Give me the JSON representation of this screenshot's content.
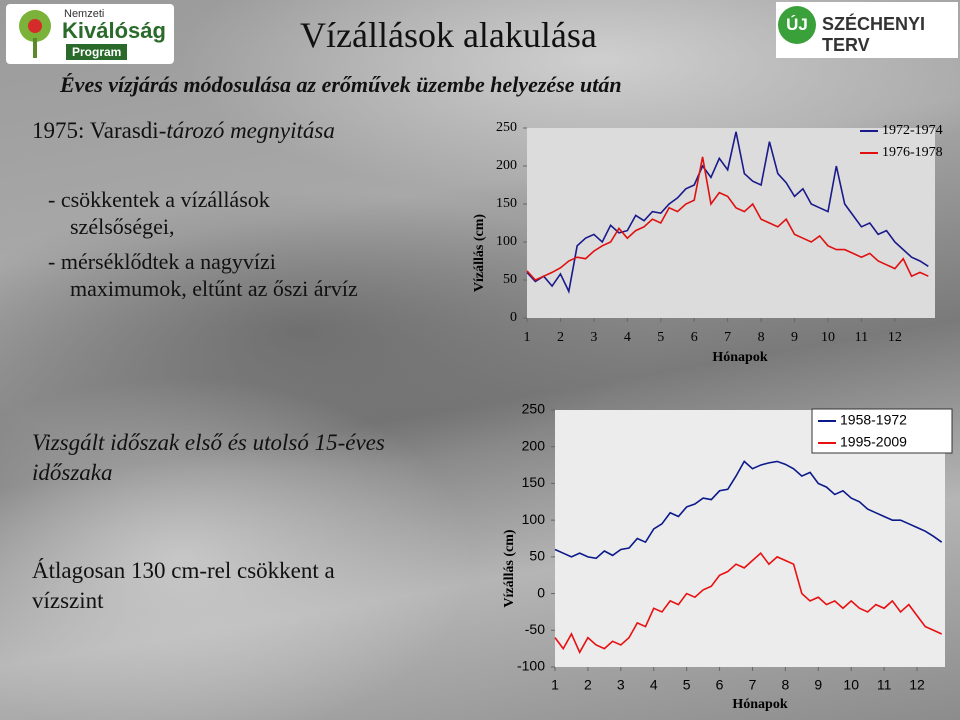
{
  "header": {
    "title": "Vízállások alakulása",
    "subtitle": "Éves vízjárás módosulása az erőművek üzembe helyezése után"
  },
  "logos": {
    "left": {
      "top": "Nemzeti",
      "main": "Kiválóság",
      "bottom": "Program"
    },
    "right": {
      "icon": "ÚJ",
      "text": "SZÉCHENYI TERV"
    }
  },
  "texts": {
    "event": [
      "1975: Varasdi-",
      "tározó megnyitása"
    ],
    "bullets": [
      "- csökkentek a vízállások szélsőségei,",
      "- mérséklődtek a nagyvízi maximumok, eltűnt az őszi árvíz"
    ],
    "period": "Vizsgált időszak első és utolsó 15-éves időszaka",
    "summary": "Átlagosan 130 cm-rel csökkent a vízszint"
  },
  "chart_data": [
    {
      "type": "line",
      "xlabel": "Hónapok",
      "ylabel": "Vízállás (cm)",
      "grid": false,
      "legend": "upper right",
      "xlim": [
        1,
        13.2
      ],
      "xticks": [
        1,
        2,
        3,
        4,
        5,
        6,
        7,
        8,
        9,
        10,
        11,
        12
      ],
      "ylim": [
        0,
        250
      ],
      "yticks": [
        0,
        50,
        100,
        150,
        200,
        250
      ],
      "x": [
        1,
        1.25,
        1.5,
        1.75,
        2,
        2.25,
        2.5,
        2.75,
        3,
        3.25,
        3.5,
        3.75,
        4,
        4.25,
        4.5,
        4.75,
        5,
        5.25,
        5.5,
        5.75,
        6,
        6.25,
        6.5,
        6.75,
        7,
        7.25,
        7.5,
        7.75,
        8,
        8.25,
        8.5,
        8.75,
        9,
        9.25,
        9.5,
        9.75,
        10,
        10.25,
        10.5,
        10.75,
        11,
        11.25,
        11.5,
        11.75,
        12,
        12.25,
        12.5,
        12.75,
        13
      ],
      "series": [
        {
          "name": "1972-1974",
          "color": "#1a1a8c",
          "values": [
            60,
            48,
            55,
            42,
            58,
            35,
            95,
            105,
            110,
            100,
            122,
            112,
            115,
            135,
            128,
            140,
            138,
            150,
            158,
            170,
            175,
            200,
            185,
            210,
            195,
            245,
            190,
            180,
            175,
            232,
            190,
            178,
            160,
            170,
            150,
            145,
            140,
            200,
            150,
            135,
            120,
            125,
            110,
            115,
            100,
            90,
            80,
            75,
            68
          ]
        },
        {
          "name": "1976-1978",
          "color": "#e01010",
          "values": [
            62,
            50,
            55,
            60,
            66,
            75,
            80,
            78,
            88,
            95,
            100,
            118,
            105,
            115,
            120,
            130,
            125,
            145,
            140,
            150,
            155,
            212,
            150,
            165,
            160,
            145,
            140,
            150,
            130,
            125,
            120,
            130,
            110,
            105,
            100,
            108,
            95,
            90,
            90,
            85,
            80,
            85,
            75,
            70,
            65,
            78,
            55,
            60,
            55
          ]
        }
      ]
    },
    {
      "type": "line",
      "xlabel": "Hónapok",
      "ylabel": "Vízállás (cm)",
      "grid": false,
      "legend": "upper right",
      "xlim": [
        1,
        12.85
      ],
      "xticks": [
        1,
        2,
        3,
        4,
        5,
        6,
        7,
        8,
        9,
        10,
        11,
        12
      ],
      "ylim": [
        -100,
        250
      ],
      "yticks": [
        -100,
        -50,
        0,
        50,
        100,
        150,
        200,
        250
      ],
      "x": [
        1,
        1.25,
        1.5,
        1.75,
        2,
        2.25,
        2.5,
        2.75,
        3,
        3.25,
        3.5,
        3.75,
        4,
        4.25,
        4.5,
        4.75,
        5,
        5.25,
        5.5,
        5.75,
        6,
        6.25,
        6.5,
        6.75,
        7,
        7.25,
        7.5,
        7.75,
        8,
        8.25,
        8.5,
        8.75,
        9,
        9.25,
        9.5,
        9.75,
        10,
        10.25,
        10.5,
        10.75,
        11,
        11.25,
        11.5,
        11.75,
        12,
        12.25,
        12.5,
        12.75
      ],
      "series": [
        {
          "name": "1958-1972",
          "color": "#0a1a8a",
          "values": [
            60,
            55,
            50,
            55,
            50,
            48,
            58,
            52,
            60,
            62,
            75,
            70,
            88,
            95,
            110,
            105,
            118,
            122,
            130,
            128,
            140,
            142,
            160,
            180,
            170,
            175,
            178,
            180,
            176,
            170,
            160,
            165,
            150,
            145,
            135,
            140,
            130,
            125,
            115,
            110,
            105,
            100,
            100,
            95,
            90,
            85,
            78,
            70
          ]
        },
        {
          "name": "1995-2009",
          "color": "#e81010",
          "values": [
            -60,
            -75,
            -55,
            -80,
            -60,
            -70,
            -75,
            -65,
            -70,
            -60,
            -40,
            -45,
            -20,
            -25,
            -10,
            -15,
            0,
            -5,
            5,
            10,
            25,
            30,
            40,
            35,
            45,
            55,
            40,
            50,
            45,
            40,
            0,
            -10,
            -5,
            -15,
            -10,
            -20,
            -10,
            -20,
            -25,
            -15,
            -20,
            -10,
            -25,
            -15,
            -30,
            -45,
            -50,
            -55
          ]
        }
      ]
    }
  ]
}
